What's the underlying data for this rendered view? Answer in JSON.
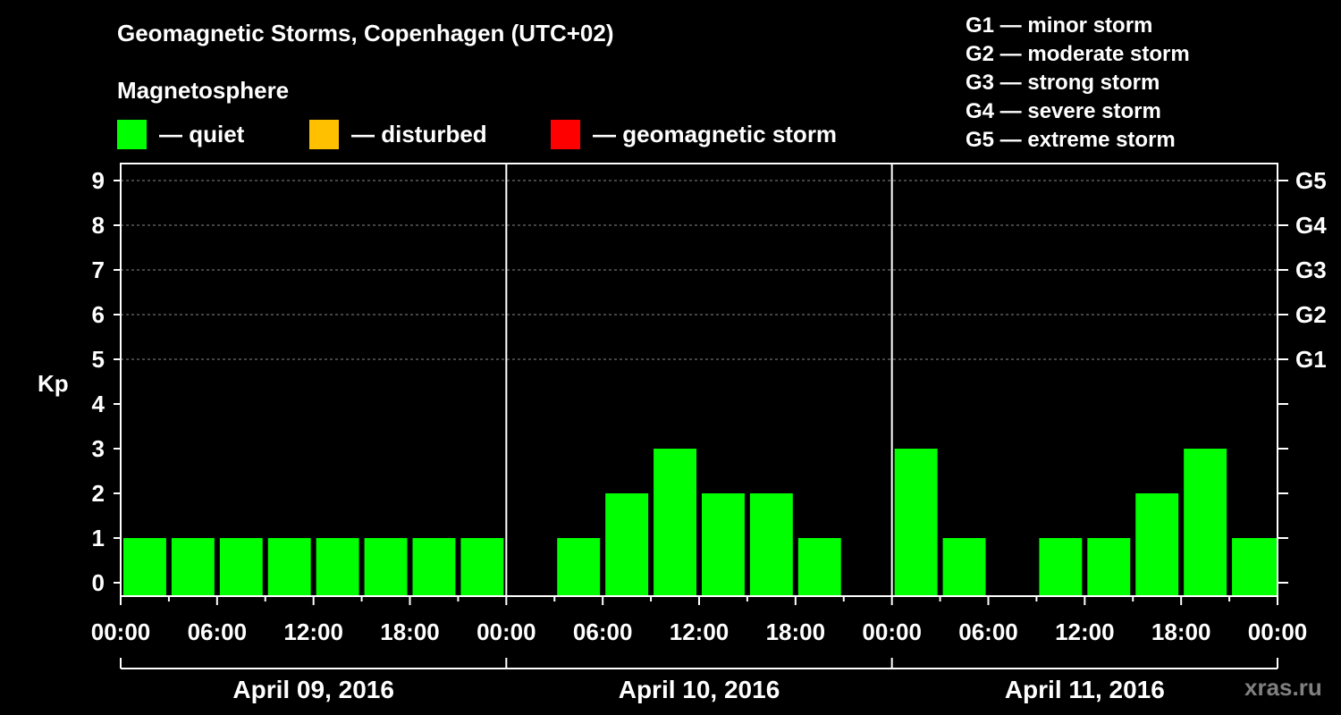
{
  "title": "Geomagnetic Storms, Copenhagen (UTC+02)",
  "subtitle": "Magnetosphere",
  "legend": [
    {
      "label": "— quiet",
      "color": "#00ff00"
    },
    {
      "label": "— disturbed",
      "color": "#ffc000"
    },
    {
      "label": "— geomagnetic storm",
      "color": "#ff0000"
    }
  ],
  "storm_scale": [
    "G1 — minor storm",
    "G2 — moderate storm",
    "G3 — strong storm",
    "G4 — severe storm",
    "G5 — extreme storm"
  ],
  "watermark": "xras.ru",
  "chart_data": {
    "type": "bar",
    "ylabel": "Kp",
    "ylim": [
      0,
      9
    ],
    "y_ticks": [
      "0",
      "1",
      "2",
      "3",
      "4",
      "5",
      "6",
      "7",
      "8",
      "9"
    ],
    "right_ticks": [
      {
        "kp": 5,
        "label": "G1"
      },
      {
        "kp": 6,
        "label": "G2"
      },
      {
        "kp": 7,
        "label": "G3"
      },
      {
        "kp": 8,
        "label": "G4"
      },
      {
        "kp": 9,
        "label": "G5"
      }
    ],
    "x_tick_labels": [
      "00:00",
      "06:00",
      "12:00",
      "18:00",
      "00:00",
      "06:00",
      "12:00",
      "18:00",
      "00:00",
      "06:00",
      "12:00",
      "18:00",
      "00:00"
    ],
    "days": [
      "April 09, 2016",
      "April 10, 2016",
      "April 11, 2016"
    ],
    "interval_hours": 3,
    "grid": "dashed horizontal at Kp 5-9",
    "values": [
      1,
      1,
      1,
      1,
      1,
      1,
      1,
      1,
      0,
      1,
      2,
      3,
      2,
      2,
      1,
      0,
      3,
      1,
      0,
      1,
      1,
      2,
      3,
      1
    ],
    "last_bar_partial": true,
    "bar_color": "#00ff00"
  }
}
